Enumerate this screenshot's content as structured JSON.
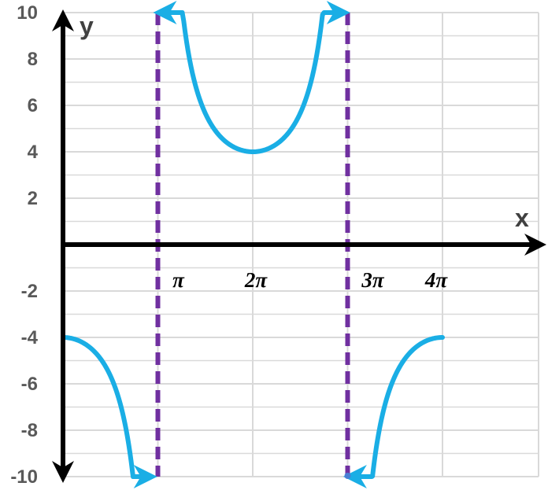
{
  "chart_data": {
    "type": "line",
    "title": "",
    "xlabel": "x",
    "ylabel": "y",
    "xlim": [
      0,
      11.7
    ],
    "ylim": [
      -10,
      10
    ],
    "x_ticks": [
      {
        "label": "π",
        "value": 3.1416
      },
      {
        "label": "2π",
        "value": 6.2832
      },
      {
        "label": "3π",
        "value": 9.4248
      },
      {
        "label": "4π",
        "value": 12.5664
      }
    ],
    "y_ticks": [
      {
        "label": "10",
        "value": 10
      },
      {
        "label": "8",
        "value": 8
      },
      {
        "label": "6",
        "value": 6
      },
      {
        "label": "4",
        "value": 4
      },
      {
        "label": "2",
        "value": 2
      },
      {
        "label": "-2",
        "value": -2
      },
      {
        "label": "-4",
        "value": -4
      },
      {
        "label": "-6",
        "value": -6
      },
      {
        "label": "-8",
        "value": -8
      },
      {
        "label": "-10",
        "value": -10
      }
    ],
    "grid": true,
    "asymptotes": [
      3.1416,
      9.4248
    ],
    "series": [
      {
        "function": "-4/cos(x/2)",
        "x_start": 0,
        "x_end": 2.73,
        "arrow_end": true
      },
      {
        "function": "-4/cos(x/2)",
        "x_start": 3.375,
        "x_end": 9.12,
        "arrow_start": true,
        "arrow_end": true
      },
      {
        "function": "-4/cos(x/2)",
        "x_start": 9.67,
        "x_end": 12.5664,
        "arrow_start": true
      }
    ],
    "colors": {
      "curve": "#1aaee5",
      "asymptote": "#7030a0",
      "axis": "#000000",
      "grid": "#d9d9d9"
    }
  }
}
